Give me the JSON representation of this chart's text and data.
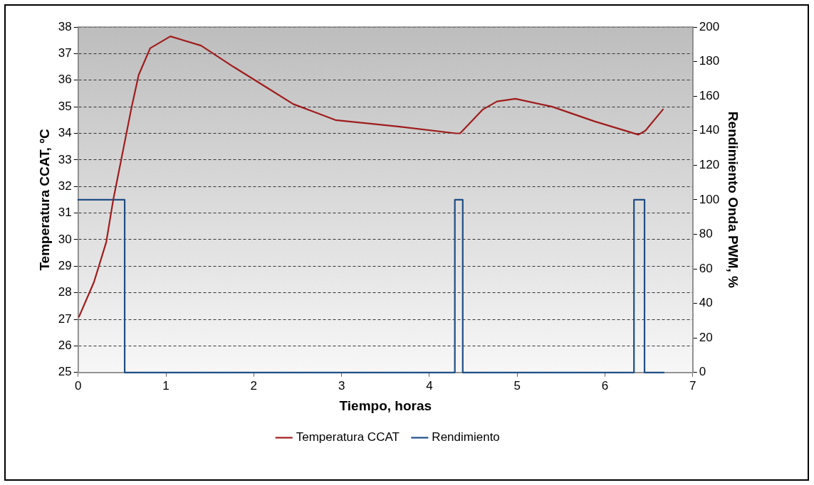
{
  "chart_data": {
    "type": "line",
    "xlabel": "Tiempo, horas",
    "ylabel": "Temperatura CCAT, ºC",
    "y2label": "Rendimiento Onda PWM, %",
    "xlim": [
      0,
      7
    ],
    "xticks": [
      0,
      1,
      2,
      3,
      4,
      5,
      6,
      7
    ],
    "ylim": [
      25,
      38
    ],
    "yticks": [
      25,
      26,
      27,
      28,
      29,
      30,
      31,
      32,
      33,
      34,
      35,
      36,
      37,
      38
    ],
    "y2lim": [
      0,
      200
    ],
    "y2ticks": [
      0,
      20,
      40,
      60,
      80,
      100,
      120,
      140,
      160,
      180,
      200
    ],
    "grid": "y",
    "legend": "bottom",
    "marker": "none",
    "line_style": "solid",
    "series": [
      {
        "name": "Temperatura CCAT",
        "color": "#a01c1c",
        "x": [
          0.01,
          0.18,
          0.32,
          0.4,
          0.49,
          0.61,
          0.69,
          0.82,
          1.05,
          1.4,
          1.77,
          2.16,
          2.45,
          2.69,
          2.93,
          3.66,
          4.3,
          4.35,
          4.61,
          4.77,
          4.98,
          5.4,
          5.88,
          6.38,
          6.46,
          6.66
        ],
        "values": [
          27.1,
          28.4,
          29.9,
          31.5,
          33.0,
          35.0,
          36.2,
          37.2,
          37.65,
          37.3,
          36.5,
          35.7,
          35.1,
          34.8,
          34.5,
          34.25,
          34.0,
          34.0,
          34.9,
          35.2,
          35.3,
          35.0,
          34.45,
          33.95,
          34.1,
          34.9
        ]
      },
      {
        "name": "Rendimiento",
        "type": "step",
        "axis": "y2",
        "color": "#1f4e85",
        "x": [
          0,
          0.53,
          0.53,
          4.29,
          4.29,
          4.38,
          4.38,
          6.33,
          6.33,
          6.45,
          6.45,
          6.67
        ],
        "values": [
          100,
          100,
          0,
          0,
          100,
          100,
          0,
          0,
          100,
          100,
          0,
          0
        ]
      }
    ]
  }
}
